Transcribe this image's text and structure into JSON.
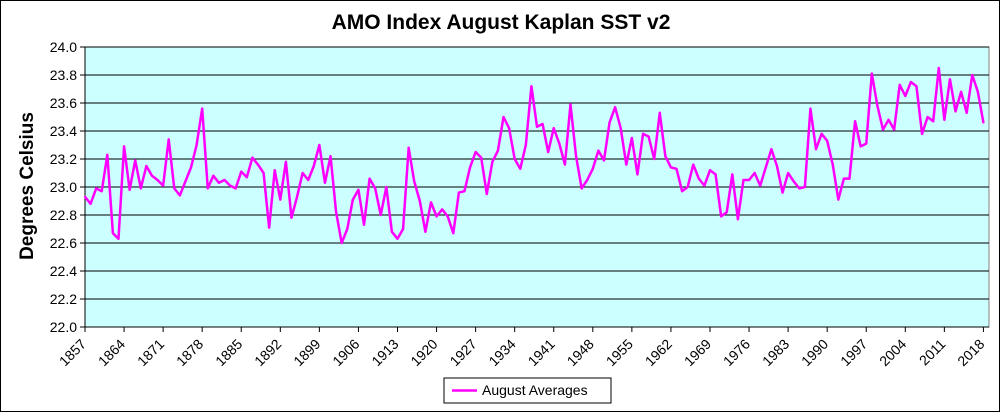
{
  "chart_data": {
    "type": "line",
    "title": "AMO Index August Kaplan SST v2",
    "xlabel": "",
    "ylabel": "Degrees Celsius",
    "ylim": [
      22.0,
      24.0
    ],
    "yticks": [
      "22.0",
      "22.2",
      "22.4",
      "22.6",
      "22.8",
      "23.0",
      "23.2",
      "23.4",
      "23.6",
      "23.8",
      "24.0"
    ],
    "xlim": [
      1857,
      2019
    ],
    "xticks": [
      "1857",
      "1864",
      "1871",
      "1878",
      "1885",
      "1892",
      "1899",
      "1906",
      "1913",
      "1920",
      "1927",
      "1934",
      "1941",
      "1948",
      "1955",
      "1962",
      "1969",
      "1976",
      "1983",
      "1990",
      "1997",
      "2004",
      "2011",
      "2018"
    ],
    "grid": "horizontal",
    "legend": "bottom-center",
    "x_start": 1857,
    "series": [
      {
        "name": "August Averages",
        "color": "#ff00ff",
        "values": [
          22.93,
          22.88,
          22.99,
          22.97,
          23.23,
          22.67,
          22.63,
          23.29,
          22.98,
          23.19,
          22.99,
          23.15,
          23.08,
          23.05,
          23.01,
          23.34,
          22.99,
          22.94,
          23.04,
          23.14,
          23.3,
          23.56,
          22.99,
          23.08,
          23.03,
          23.05,
          23.01,
          22.99,
          23.11,
          23.07,
          23.21,
          23.16,
          23.1,
          22.71,
          23.12,
          22.91,
          23.18,
          22.78,
          22.93,
          23.1,
          23.05,
          23.15,
          23.3,
          23.03,
          23.22,
          22.82,
          22.6,
          22.7,
          22.91,
          22.98,
          22.73,
          23.06,
          22.99,
          22.8,
          23.0,
          22.68,
          22.63,
          22.7,
          23.28,
          23.04,
          22.9,
          22.68,
          22.89,
          22.79,
          22.84,
          22.79,
          22.67,
          22.96,
          22.97,
          23.14,
          23.25,
          23.21,
          22.95,
          23.18,
          23.26,
          23.5,
          23.42,
          23.2,
          23.13,
          23.3,
          23.72,
          23.43,
          23.45,
          23.25,
          23.42,
          23.31,
          23.16,
          23.59,
          23.22,
          22.99,
          23.05,
          23.13,
          23.26,
          23.19,
          23.46,
          23.57,
          23.42,
          23.16,
          23.35,
          23.09,
          23.38,
          23.36,
          23.2,
          23.53,
          23.22,
          23.14,
          23.13,
          22.97,
          23.0,
          23.16,
          23.06,
          23.01,
          23.12,
          23.09,
          22.79,
          22.82,
          23.09,
          22.77,
          23.05,
          23.05,
          23.1,
          23.01,
          23.14,
          23.27,
          23.15,
          22.96,
          23.1,
          23.04,
          22.99,
          23.0,
          23.56,
          23.27,
          23.38,
          23.33,
          23.16,
          22.91,
          23.06,
          23.06,
          23.47,
          23.29,
          23.31,
          23.81,
          23.58,
          23.41,
          23.48,
          23.41,
          23.73,
          23.65,
          23.75,
          23.72,
          23.38,
          23.5,
          23.47,
          23.85,
          23.48,
          23.77,
          23.54,
          23.68,
          23.53,
          23.8,
          23.68,
          23.46
        ]
      }
    ]
  }
}
